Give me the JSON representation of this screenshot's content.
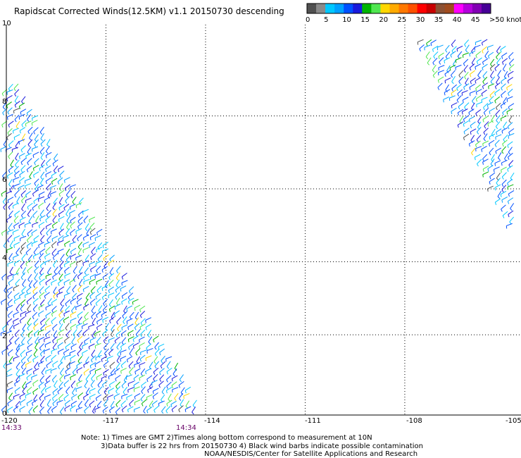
{
  "title": "Rapidscat Corrected Winds(12.5KM) v1.1 20150730 descending",
  "legend": {
    "colors": [
      "#505050",
      "#8a8a8a",
      "#00c8ff",
      "#00a0ff",
      "#0050ff",
      "#1a1adc",
      "#00b400",
      "#50e650",
      "#ffd700",
      "#ffaa00",
      "#ff7800",
      "#ff5000",
      "#ff0000",
      "#c80000",
      "#8c5032",
      "#a04b1e",
      "#ff00ff",
      "#b400dc",
      "#8200b4",
      "#460096"
    ],
    "labels": [
      "0",
      "5",
      "10",
      "15",
      "20",
      "25",
      "30",
      "35",
      "40",
      "45",
      ">50 knots"
    ]
  },
  "lat_labels": [
    "10",
    "8",
    "6",
    "4",
    "2",
    "0"
  ],
  "lon_labels": [
    "-120",
    "-117",
    "-114",
    "-111",
    "-108",
    "-105"
  ],
  "times": [
    "14:33",
    "14:34"
  ],
  "notes": [
    "Note: 1) Times are GMT 2)Times along bottom correspond to measurement at 10N",
    "3)Data buffer is 22 hrs from 20150730 4) Black wind barbs indicate possible contamination",
    "NOAA/NESDIS/Center for Satellite Applications and Research"
  ],
  "map_data": {
    "lon_range": [
      -120,
      -104.5
    ],
    "lat_range": [
      -0.2,
      10.5
    ],
    "grid_lons": [
      -117,
      -114,
      -111,
      -108
    ],
    "grid_lats": [
      8,
      6,
      4,
      2
    ],
    "swaths": [
      {
        "name": "west-swath",
        "polygon": [
          [
            -120,
            8.9
          ],
          [
            -119.6,
            8.9
          ],
          [
            -114,
            -0.1
          ],
          [
            -120,
            -0.1
          ]
        ]
      },
      {
        "name": "east-swath",
        "polygon": [
          [
            -107.6,
            10.1
          ],
          [
            -105.4,
            10.1
          ],
          [
            -104.6,
            9.8
          ],
          [
            -104.6,
            4.7
          ],
          [
            -105.8,
            6.9
          ]
        ]
      }
    ]
  }
}
